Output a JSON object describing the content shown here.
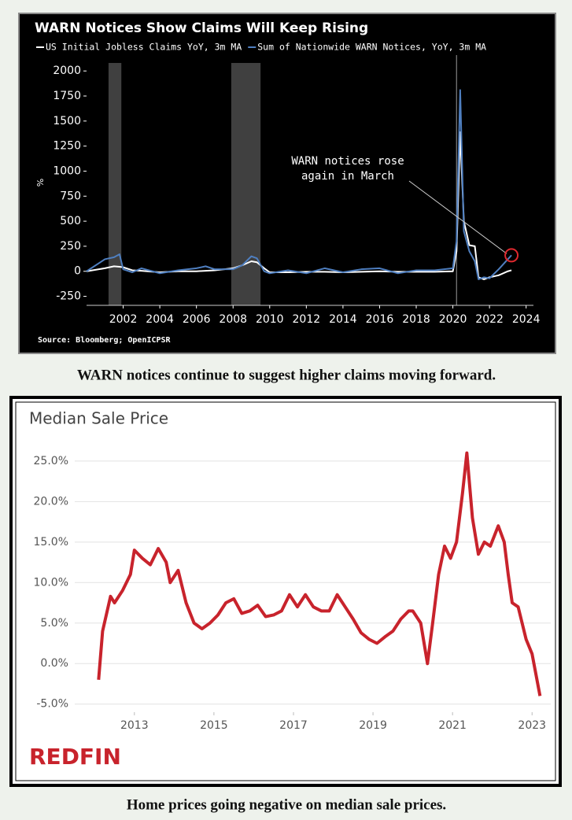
{
  "chart_data": [
    {
      "type": "line",
      "title": "WARN Notices Show Claims Will Keep Rising",
      "ylabel": "%",
      "annotation": [
        "WARN notices rose",
        "again in March"
      ],
      "source": "Source: Bloomberg; OpenICPSR",
      "caption": "WARN notices continue to suggest higher claims moving forward.",
      "grid": false,
      "shaded": [
        [
          2001.2,
          2001.9
        ],
        [
          2007.9,
          2009.5
        ]
      ],
      "vline": 2020.2,
      "x": [
        2000,
        2001,
        2001.5,
        2001.8,
        2002,
        2002.5,
        2003,
        2004,
        2005,
        2006,
        2006.5,
        2007,
        2008,
        2008.5,
        2009,
        2009.3,
        2009.7,
        2010,
        2011,
        2012,
        2013,
        2014,
        2015,
        2016,
        2017,
        2018,
        2019,
        2020,
        2020.2,
        2020.4,
        2020.6,
        2020.9,
        2021.2,
        2021.4,
        2021.7,
        2022,
        2022.5,
        2023,
        2023.2
      ],
      "series": [
        {
          "name": "US Initial Jobless Claims YoY, 3m MA",
          "color": "#ffffff",
          "values": [
            0,
            30,
            50,
            45,
            40,
            10,
            5,
            -10,
            0,
            0,
            5,
            10,
            30,
            60,
            100,
            90,
            30,
            -10,
            -10,
            -5,
            -5,
            -10,
            -5,
            0,
            -5,
            -5,
            -5,
            0,
            200,
            1390,
            500,
            260,
            250,
            -60,
            -80,
            -60,
            -40,
            0,
            10
          ]
        },
        {
          "name": "Sum of Nationwide WARN Notices, YoY, 3m MA",
          "color": "#4f7fc0",
          "values": [
            0,
            120,
            140,
            170,
            20,
            -10,
            30,
            -20,
            10,
            30,
            50,
            20,
            20,
            60,
            150,
            130,
            0,
            -20,
            10,
            -20,
            30,
            -10,
            20,
            30,
            -20,
            10,
            10,
            30,
            300,
            1810,
            400,
            200,
            100,
            -80,
            -60,
            -70,
            20,
            120,
            160
          ]
        }
      ],
      "xlim": [
        2000,
        2024.4
      ],
      "xticks": [
        2002,
        2004,
        2006,
        2008,
        2010,
        2012,
        2014,
        2016,
        2018,
        2020,
        2022,
        2024
      ],
      "ylim": [
        -340,
        2080
      ],
      "yticks": [
        -250,
        0,
        250,
        500,
        750,
        1000,
        1250,
        1500,
        1750,
        2000
      ]
    },
    {
      "type": "line",
      "title": "Median Sale Price",
      "brand": "REDFIN",
      "caption": "Home prices going negative on median sale prices.",
      "grid": true,
      "color": "#c8232c",
      "x": [
        2012.1,
        2012.2,
        2012.4,
        2012.5,
        2012.7,
        2012.9,
        2013.0,
        2013.2,
        2013.4,
        2013.6,
        2013.8,
        2013.9,
        2014.1,
        2014.3,
        2014.5,
        2014.7,
        2014.9,
        2015.1,
        2015.3,
        2015.5,
        2015.7,
        2015.9,
        2016.1,
        2016.3,
        2016.5,
        2016.7,
        2016.9,
        2017.1,
        2017.3,
        2017.5,
        2017.7,
        2017.9,
        2018.1,
        2018.3,
        2018.5,
        2018.7,
        2018.9,
        2019.1,
        2019.3,
        2019.5,
        2019.7,
        2019.9,
        2020.0,
        2020.2,
        2020.37,
        2020.5,
        2020.65,
        2020.8,
        2020.95,
        2021.1,
        2021.25,
        2021.36,
        2021.5,
        2021.65,
        2021.8,
        2021.95,
        2022.15,
        2022.3,
        2022.4,
        2022.5,
        2022.65,
        2022.85,
        2023.0,
        2023.2
      ],
      "values": [
        -2,
        4,
        8.3,
        7.5,
        9,
        11,
        14,
        13,
        12.2,
        14.2,
        12.5,
        10,
        11.5,
        7.5,
        5,
        4.3,
        5,
        6,
        7.5,
        8,
        6.2,
        6.5,
        7.2,
        5.8,
        6,
        6.5,
        8.5,
        7,
        8.5,
        7,
        6.5,
        6.5,
        8.5,
        7,
        5.5,
        3.8,
        3,
        2.5,
        3.3,
        4,
        5.5,
        6.5,
        6.5,
        5,
        0,
        5,
        11,
        14.5,
        13,
        15,
        21,
        26,
        18,
        13.5,
        15,
        14.5,
        17,
        15,
        11,
        7.5,
        7,
        3,
        1.2,
        -4
      ],
      "xlim": [
        2011.5,
        2023.47
      ],
      "xticks": [
        2013,
        2015,
        2017,
        2019,
        2021,
        2023
      ],
      "ylim": [
        -6,
        28
      ],
      "yticks": [
        {
          "value": -5,
          "label": "-5.0%"
        },
        {
          "value": 0,
          "label": "0.0%"
        },
        {
          "value": 5,
          "label": "5.0%"
        },
        {
          "value": 10,
          "label": "10.0%"
        },
        {
          "value": 15,
          "label": "15.0%"
        },
        {
          "value": 20,
          "label": "20.0%"
        },
        {
          "value": 25,
          "label": "25.0%"
        }
      ]
    }
  ]
}
